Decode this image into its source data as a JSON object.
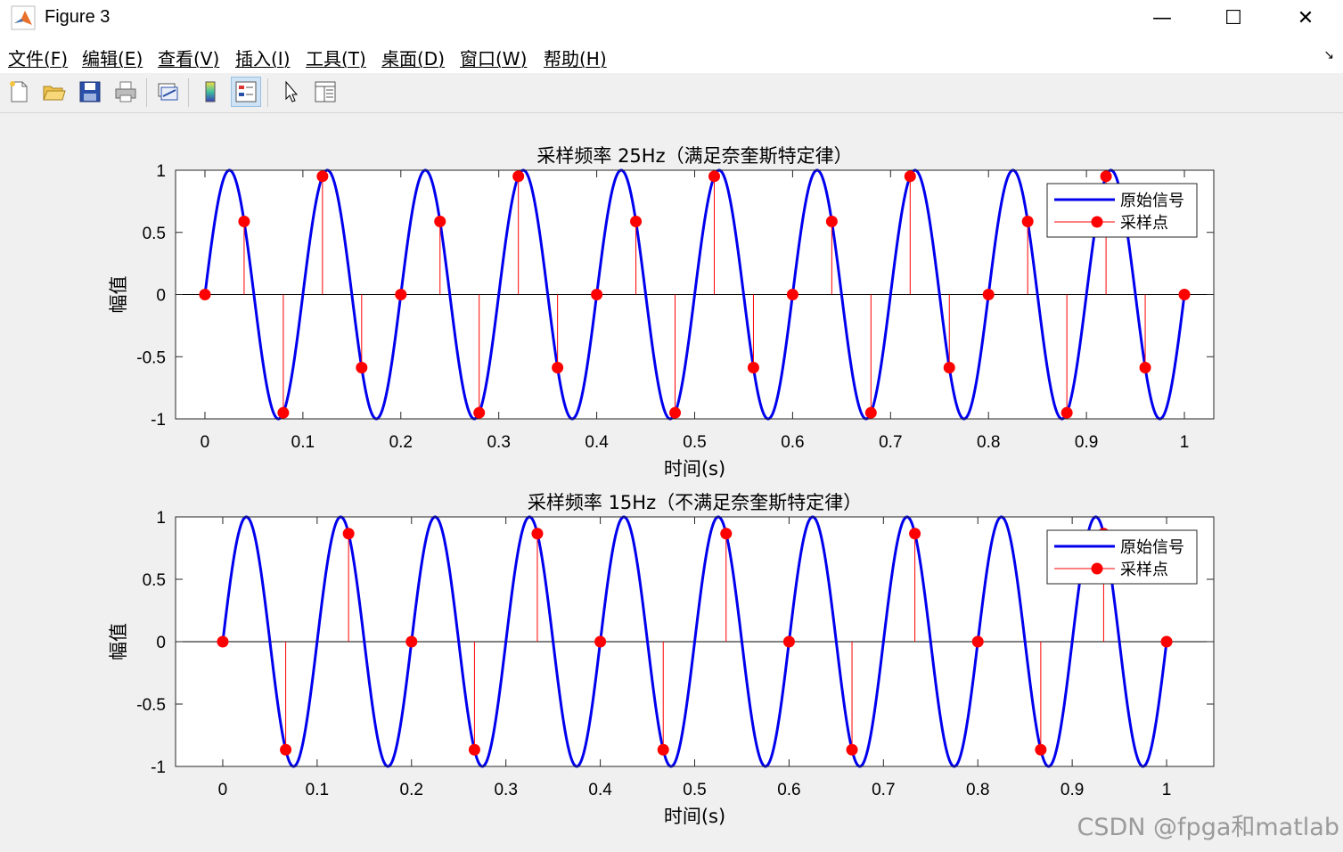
{
  "window": {
    "title": "Figure 3",
    "controls": {
      "minimize": "—",
      "maximize": "☐",
      "close": "✕"
    }
  },
  "menu": {
    "items": [
      "文件(F)",
      "编辑(E)",
      "查看(V)",
      "插入(I)",
      "工具(T)",
      "桌面(D)",
      "窗口(W)",
      "帮助(H)"
    ]
  },
  "toolbar": {
    "icons": [
      "new-figure-icon",
      "open-file-icon",
      "save-icon",
      "print-icon",
      "link-plot-icon",
      "colorbar-icon",
      "legend-icon",
      "pointer-icon",
      "property-inspector-icon"
    ]
  },
  "colors": {
    "signal": "#0000ee",
    "samples": "#ff0000",
    "background": "#f0f0f0"
  },
  "watermark": "CSDN @fpga和matlab",
  "chart_data": [
    {
      "type": "line",
      "title": "采样频率 25Hz（满足奈奎斯特定律）",
      "xlabel": "时间(s)",
      "ylabel": "幅值",
      "xlim": [
        -0.03,
        1.03
      ],
      "ylim": [
        -1,
        1
      ],
      "xticks": [
        "0",
        "0.1",
        "0.2",
        "0.3",
        "0.4",
        "0.5",
        "0.6",
        "0.7",
        "0.8",
        "0.9",
        "1"
      ],
      "yticks": [
        "1",
        "0.5",
        "0",
        "-0.5",
        "-1"
      ],
      "legend": [
        "原始信号",
        "采样点"
      ],
      "legend_position": "top-right",
      "series": [
        {
          "name": "原始信号",
          "signal_frequency_hz": 10,
          "amplitude": 1,
          "x_range": [
            0,
            1
          ]
        },
        {
          "name": "采样点",
          "sample_frequency_hz": 25,
          "x": [
            0,
            0.04,
            0.08,
            0.12,
            0.16,
            0.2,
            0.24,
            0.28,
            0.32,
            0.36,
            0.4,
            0.44,
            0.48,
            0.52,
            0.56,
            0.6,
            0.64,
            0.68,
            0.72,
            0.76,
            0.8,
            0.84,
            0.88,
            0.92,
            0.96,
            1
          ],
          "y": [
            0,
            0.588,
            -0.951,
            0.951,
            -0.588,
            0,
            0.588,
            -0.951,
            0.951,
            -0.588,
            0,
            0.588,
            -0.951,
            0.951,
            -0.588,
            0,
            0.588,
            -0.951,
            0.951,
            -0.588,
            0,
            0.588,
            -0.951,
            0.951,
            -0.588,
            0
          ]
        }
      ]
    },
    {
      "type": "line",
      "title": "采样频率 15Hz（不满足奈奎斯特定律）",
      "xlabel": "时间(s)",
      "ylabel": "幅值",
      "xlim": [
        -0.05,
        1.05
      ],
      "ylim": [
        -1,
        1
      ],
      "xticks": [
        "0",
        "0.1",
        "0.2",
        "0.3",
        "0.4",
        "0.5",
        "0.6",
        "0.7",
        "0.8",
        "0.9",
        "1"
      ],
      "yticks": [
        "1",
        "0.5",
        "0",
        "-0.5",
        "-1"
      ],
      "legend": [
        "原始信号",
        "采样点"
      ],
      "legend_position": "top-right",
      "series": [
        {
          "name": "原始信号",
          "signal_frequency_hz": 10,
          "amplitude": 1,
          "x_range": [
            0,
            1
          ]
        },
        {
          "name": "采样点",
          "sample_frequency_hz": 15,
          "x": [
            0,
            0.0667,
            0.1333,
            0.2,
            0.2667,
            0.3333,
            0.4,
            0.4667,
            0.5333,
            0.6,
            0.6667,
            0.7333,
            0.8,
            0.8667,
            0.9333,
            1
          ],
          "y": [
            0,
            -0.866,
            0.866,
            0,
            -0.866,
            0.866,
            0,
            -0.866,
            0.866,
            0,
            -0.866,
            0.866,
            0,
            -0.866,
            0.866,
            0
          ]
        }
      ]
    }
  ]
}
